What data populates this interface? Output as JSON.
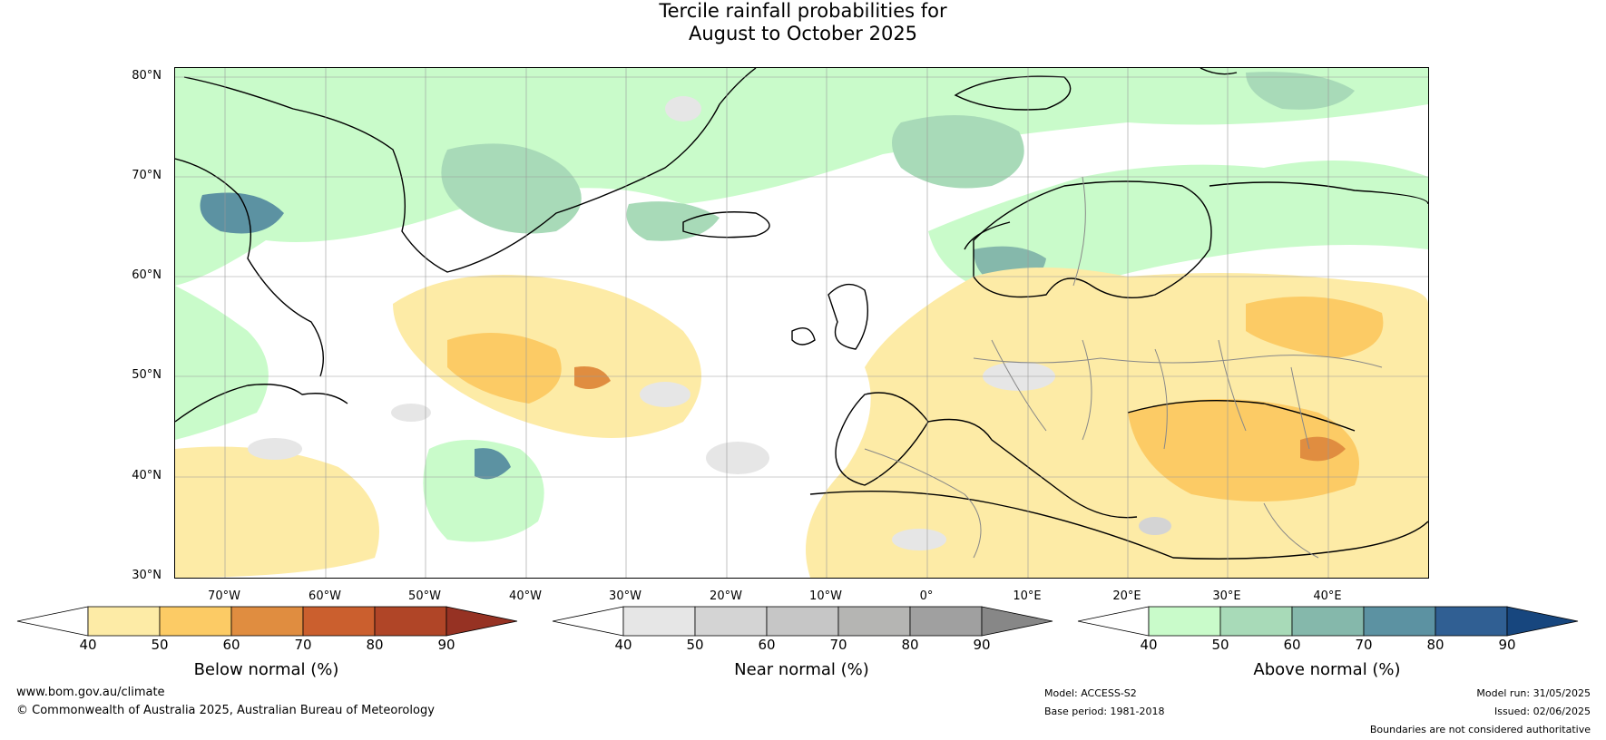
{
  "title": {
    "line1": "Tercile rainfall probabilities for",
    "line2": "August to October 2025"
  },
  "map": {
    "lat_labels": [
      "80°N",
      "70°N",
      "60°N",
      "50°N",
      "40°N",
      "30°N"
    ],
    "lon_labels": [
      "70°W",
      "60°W",
      "50°W",
      "40°W",
      "30°W",
      "20°W",
      "10°W",
      "0°",
      "10°E",
      "20°E",
      "30°E",
      "40°E"
    ]
  },
  "legends": [
    {
      "title": "Below normal (%)",
      "ticks": [
        "40",
        "50",
        "60",
        "70",
        "80",
        "90"
      ],
      "colors": [
        "#fdeba6",
        "#fccb65",
        "#e08d40",
        "#cb5f2e",
        "#b04527"
      ],
      "low_color": "#ffffff",
      "high_color": "#963223"
    },
    {
      "title": "Near normal (%)",
      "ticks": [
        "40",
        "50",
        "60",
        "70",
        "80",
        "90"
      ],
      "colors": [
        "#e6e6e6",
        "#d4d4d4",
        "#c6c6c6",
        "#b5b5b3",
        "#a0a0a0"
      ],
      "low_color": "#ffffff",
      "high_color": "#878787"
    },
    {
      "title": "Above normal (%)",
      "ticks": [
        "40",
        "50",
        "60",
        "70",
        "80",
        "90"
      ],
      "colors": [
        "#c9fbca",
        "#a8dab8",
        "#85b8ab",
        "#5c92a2",
        "#305f93"
      ],
      "low_color": "#ffffff",
      "high_color": "#17467e"
    }
  ],
  "footer": {
    "website": "www.bom.gov.au/climate",
    "copyright": "© Commonwealth of Australia 2025, Australian Bureau of Meteorology",
    "model": "Model: ACCESS-S2",
    "base_period": "Base period: 1981-2018",
    "model_run": "Model run: 31/05/2025",
    "issued": "Issued: 02/06/2025",
    "disclaimer": "Boundaries are not considered authoritative"
  }
}
